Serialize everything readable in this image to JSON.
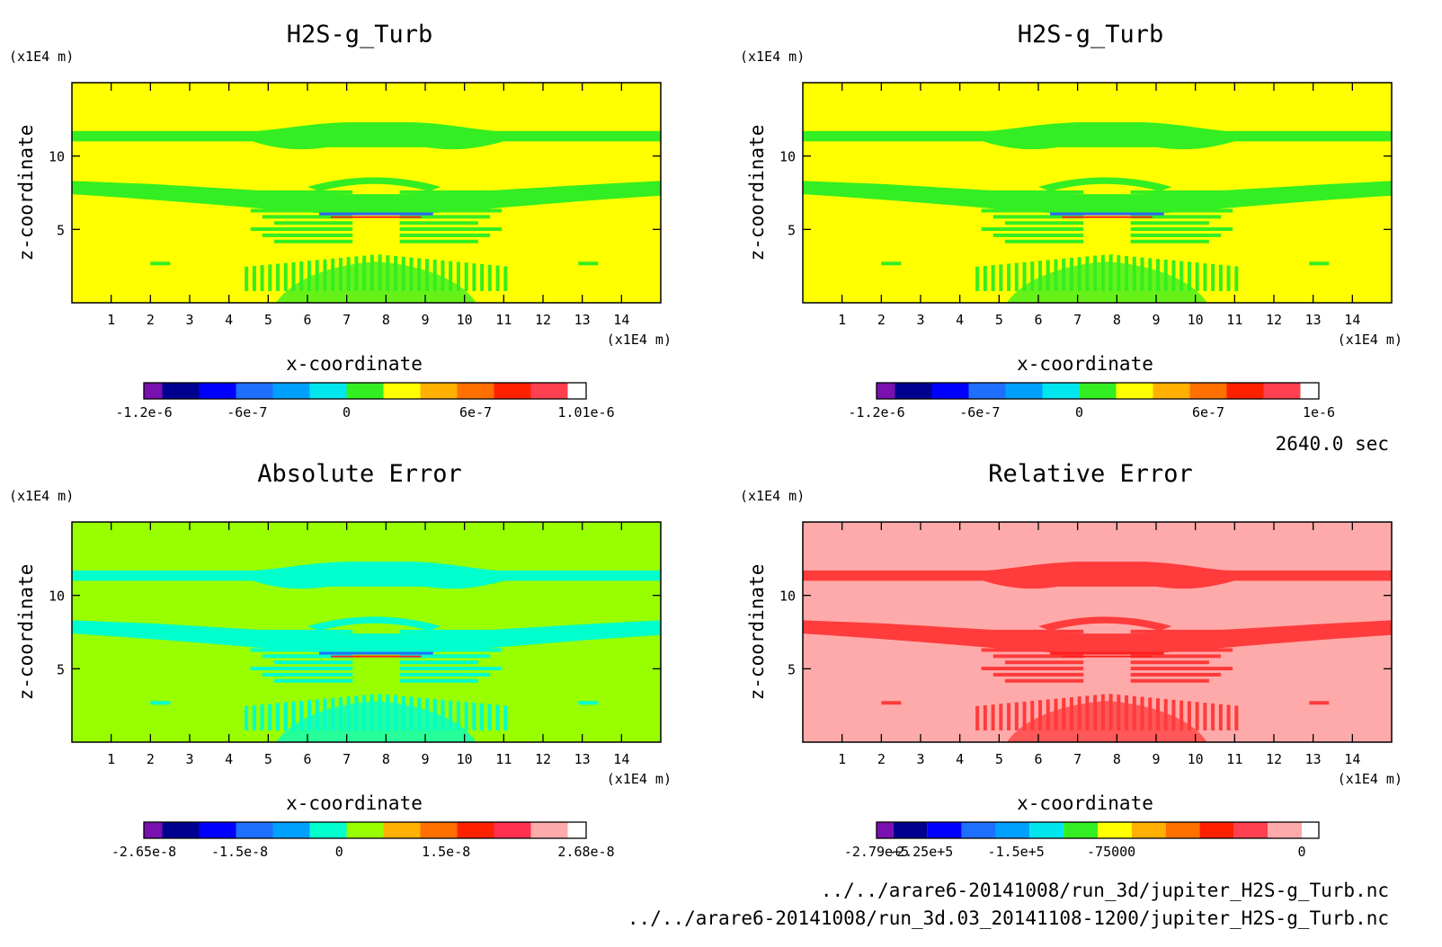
{
  "time_label": "2640.0 sec",
  "footer": {
    "path1": "../../arare6-20141008/run_3d/jupiter_H2S-g_Turb.nc",
    "path2": "../../arare6-20141008/run_3d.03_20141108-1200/jupiter_H2S-g_Turb.nc"
  },
  "chart_data": [
    {
      "type": "heatmap",
      "title": "H2S-g_Turb",
      "xlabel": "x-coordinate",
      "ylabel": "z-coordinate",
      "xunit": "(x1E4 m)",
      "yunit": "(x1E4 m)",
      "xlim": [
        0,
        15
      ],
      "ylim": [
        0,
        15
      ],
      "xticks": [
        "1",
        "2",
        "3",
        "4",
        "5",
        "6",
        "7",
        "8",
        "9",
        "10",
        "11",
        "12",
        "13",
        "14"
      ],
      "yticks": [
        "5",
        "10"
      ],
      "background": "#ffff00",
      "bands": "#33ee22",
      "accents": [
        "#ff2020",
        "#3060ff"
      ],
      "colorbar": {
        "colors": [
          "#7a10b0",
          "#000090",
          "#0000ff",
          "#1f6fff",
          "#00a0ff",
          "#00e5ee",
          "#33ee22",
          "#ffff00",
          "#ffb000",
          "#ff7000",
          "#ff2000",
          "#ff4050"
        ],
        "labels": [
          "-1.2e-6",
          "-6e-7",
          "0",
          "6e-7",
          "1.01e-6"
        ],
        "label_pos": [
          0,
          2.8,
          5.5,
          9,
          12
        ]
      }
    },
    {
      "type": "heatmap",
      "title": "H2S-g_Turb",
      "xlabel": "x-coordinate",
      "ylabel": "z-coordinate",
      "xunit": "(x1E4 m)",
      "yunit": "(x1E4 m)",
      "xlim": [
        0,
        15
      ],
      "ylim": [
        0,
        15
      ],
      "xticks": [
        "1",
        "2",
        "3",
        "4",
        "5",
        "6",
        "7",
        "8",
        "9",
        "10",
        "11",
        "12",
        "13",
        "14"
      ],
      "yticks": [
        "5",
        "10"
      ],
      "background": "#ffff00",
      "bands": "#33ee22",
      "accents": [
        "#ff2020",
        "#3060ff"
      ],
      "colorbar": {
        "colors": [
          "#7a10b0",
          "#000090",
          "#0000ff",
          "#1f6fff",
          "#00a0ff",
          "#00e5ee",
          "#33ee22",
          "#ffff00",
          "#ffb000",
          "#ff7000",
          "#ff2000",
          "#ff4050"
        ],
        "labels": [
          "-1.2e-6",
          "-6e-7",
          "0",
          "6e-7",
          "1e-6"
        ],
        "label_pos": [
          0,
          2.8,
          5.5,
          9,
          12
        ]
      }
    },
    {
      "type": "heatmap",
      "title": "Absolute Error",
      "xlabel": "x-coordinate",
      "ylabel": "z-coordinate",
      "xunit": "(x1E4 m)",
      "yunit": "(x1E4 m)",
      "xlim": [
        0,
        15
      ],
      "ylim": [
        0,
        15
      ],
      "xticks": [
        "1",
        "2",
        "3",
        "4",
        "5",
        "6",
        "7",
        "8",
        "9",
        "10",
        "11",
        "12",
        "13",
        "14"
      ],
      "yticks": [
        "5",
        "10"
      ],
      "background": "#99ff00",
      "bands": "#00ffcc",
      "accents": [
        "#ff2020",
        "#1f6fff"
      ],
      "colorbar": {
        "colors": [
          "#7a10b0",
          "#000090",
          "#0000ff",
          "#1f6fff",
          "#00a0ff",
          "#00ffcc",
          "#99ff00",
          "#ffb000",
          "#ff7000",
          "#ff2000",
          "#ff3050",
          "#ffaaaa"
        ],
        "labels": [
          "-2.65e-8",
          "-1.5e-8",
          "0",
          "1.5e-8",
          "2.68e-8"
        ],
        "label_pos": [
          0,
          2.6,
          5.3,
          8.2,
          12
        ]
      }
    },
    {
      "type": "heatmap",
      "title": "Relative Error",
      "xlabel": "x-coordinate",
      "ylabel": "z-coordinate",
      "xunit": "(x1E4 m)",
      "yunit": "(x1E4 m)",
      "xlim": [
        0,
        15
      ],
      "ylim": [
        0,
        15
      ],
      "xticks": [
        "1",
        "2",
        "3",
        "4",
        "5",
        "6",
        "7",
        "8",
        "9",
        "10",
        "11",
        "12",
        "13",
        "14"
      ],
      "yticks": [
        "5",
        "10"
      ],
      "background": "#ffaaaa",
      "bands": "#ff3b3b",
      "accents": [
        "#ff2020",
        "#ff2020"
      ],
      "colorbar": {
        "colors": [
          "#7a10b0",
          "#000090",
          "#0000ff",
          "#1f6fff",
          "#00a0ff",
          "#00e5ee",
          "#33ee22",
          "#ffff00",
          "#ffb000",
          "#ff7000",
          "#ff2000",
          "#ff4050",
          "#ffaaaa"
        ],
        "labels": [
          "-2.79e+5",
          "-2.25e+5",
          "-1.5e+5",
          "-75000",
          "0"
        ],
        "label_pos": [
          0,
          1.3,
          4.1,
          6.9,
          12.5
        ]
      }
    }
  ]
}
